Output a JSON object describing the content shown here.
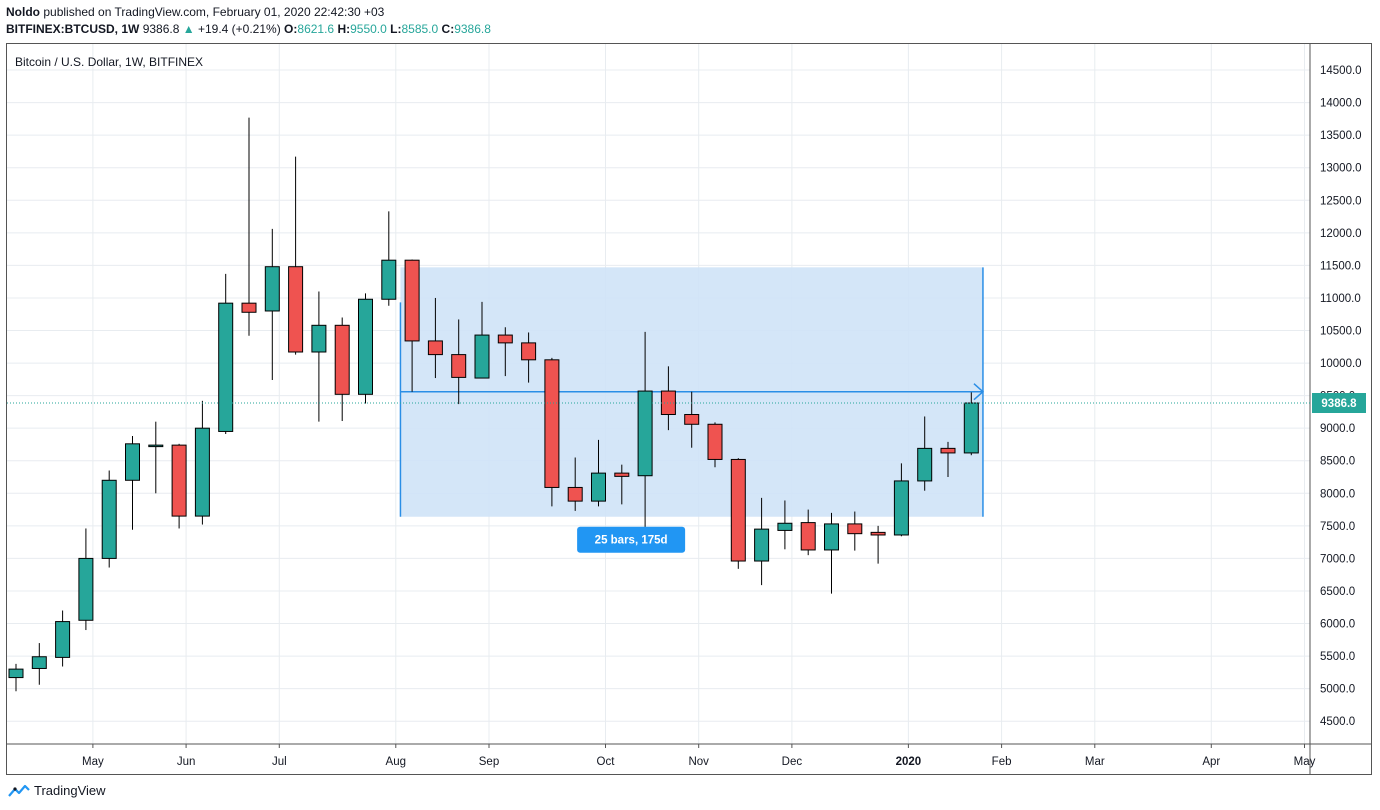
{
  "header": {
    "author": "Noldo",
    "published_text": "published on TradingView.com, February 01, 2020 22:42:30 +03",
    "symbol": "BITFINEX:BTCUSD, 1W",
    "last": "9386.8",
    "change_arrow": "▲",
    "change": "+19.4 (+0.21%)",
    "o_label": "O:",
    "o_value": "8621.6",
    "h_label": "H:",
    "h_value": "9550.0",
    "l_label": "L:",
    "l_value": "8585.0",
    "c_label": "C:",
    "c_value": "9386.8"
  },
  "footer": {
    "brand": "TradingView",
    "icon": "tradingview-logo-icon"
  },
  "colors": {
    "up": "#26a69a",
    "down": "#ef5350",
    "range_fill": "#cfe3f7",
    "range_line": "#2a8ee6",
    "badge": "#2196f3",
    "grid": "#e8ecf0"
  },
  "chart_data": {
    "type": "candlestick",
    "title": "Bitcoin / U.S. Dollar, 1W, BITFINEX",
    "y_ticks": [
      "4500.0",
      "5000.0",
      "5500.0",
      "6000.0",
      "6500.0",
      "7000.0",
      "7500.0",
      "8000.0",
      "8500.0",
      "9000.0",
      "9500.0",
      "10000.0",
      "10500.0",
      "11000.0",
      "11500.0",
      "12000.0",
      "12500.0",
      "13000.0",
      "13500.0",
      "14000.0",
      "14500.0"
    ],
    "ylim": [
      4150,
      14900
    ],
    "x_labels": [
      {
        "label": "May",
        "bar": 3.3
      },
      {
        "label": "Jun",
        "bar": 7.3
      },
      {
        "label": "Jul",
        "bar": 11.3
      },
      {
        "label": "Aug",
        "bar": 16.3
      },
      {
        "label": "Sep",
        "bar": 20.3
      },
      {
        "label": "Oct",
        "bar": 25.3
      },
      {
        "label": "Nov",
        "bar": 29.3
      },
      {
        "label": "Dec",
        "bar": 33.3
      },
      {
        "label": "2020",
        "bar": 38.3,
        "bold": true
      },
      {
        "label": "Feb",
        "bar": 42.3
      },
      {
        "label": "Mar",
        "bar": 46.3
      },
      {
        "label": "Apr",
        "bar": 51.3
      },
      {
        "label": "May",
        "bar": 55.3
      }
    ],
    "candles": [
      {
        "o": 5170,
        "h": 5380,
        "l": 4960,
        "c": 5300
      },
      {
        "o": 5310,
        "h": 5700,
        "l": 5060,
        "c": 5490
      },
      {
        "o": 5480,
        "h": 6200,
        "l": 5340,
        "c": 6030
      },
      {
        "o": 6050,
        "h": 7460,
        "l": 5900,
        "c": 7000
      },
      {
        "o": 7000,
        "h": 8350,
        "l": 6860,
        "c": 8200
      },
      {
        "o": 8200,
        "h": 8880,
        "l": 7440,
        "c": 8760
      },
      {
        "o": 8740,
        "h": 9100,
        "l": 8000,
        "c": 8740
      },
      {
        "o": 8740,
        "h": 8760,
        "l": 7460,
        "c": 7650
      },
      {
        "o": 7650,
        "h": 9420,
        "l": 7520,
        "c": 9000
      },
      {
        "o": 8950,
        "h": 11370,
        "l": 8910,
        "c": 10920
      },
      {
        "o": 10920,
        "h": 13770,
        "l": 10420,
        "c": 10780
      },
      {
        "o": 10800,
        "h": 12060,
        "l": 9740,
        "c": 11480
      },
      {
        "o": 11480,
        "h": 13170,
        "l": 10130,
        "c": 10170
      },
      {
        "o": 10170,
        "h": 11100,
        "l": 9100,
        "c": 10580
      },
      {
        "o": 10580,
        "h": 10700,
        "l": 9110,
        "c": 9520
      },
      {
        "o": 9520,
        "h": 11070,
        "l": 9380,
        "c": 10980
      },
      {
        "o": 10980,
        "h": 12330,
        "l": 10880,
        "c": 11580
      },
      {
        "o": 11580,
        "h": 11590,
        "l": 9560,
        "c": 10340
      },
      {
        "o": 10340,
        "h": 11000,
        "l": 9770,
        "c": 10130
      },
      {
        "o": 10130,
        "h": 10670,
        "l": 9370,
        "c": 9780
      },
      {
        "o": 9770,
        "h": 10940,
        "l": 9770,
        "c": 10430
      },
      {
        "o": 10430,
        "h": 10550,
        "l": 9800,
        "c": 10310
      },
      {
        "o": 10310,
        "h": 10470,
        "l": 9700,
        "c": 10050
      },
      {
        "o": 10050,
        "h": 10080,
        "l": 7800,
        "c": 8090
      },
      {
        "o": 8090,
        "h": 8550,
        "l": 7730,
        "c": 7880
      },
      {
        "o": 7880,
        "h": 8820,
        "l": 7800,
        "c": 8310
      },
      {
        "o": 8310,
        "h": 8440,
        "l": 7830,
        "c": 8260
      },
      {
        "o": 8270,
        "h": 10480,
        "l": 7450,
        "c": 9570
      },
      {
        "o": 9570,
        "h": 9950,
        "l": 8970,
        "c": 9210
      },
      {
        "o": 9210,
        "h": 9560,
        "l": 8700,
        "c": 9060
      },
      {
        "o": 9060,
        "h": 9090,
        "l": 8400,
        "c": 8520
      },
      {
        "o": 8520,
        "h": 8540,
        "l": 6840,
        "c": 6960
      },
      {
        "o": 6960,
        "h": 7930,
        "l": 6590,
        "c": 7450
      },
      {
        "o": 7430,
        "h": 7890,
        "l": 7140,
        "c": 7540
      },
      {
        "o": 7550,
        "h": 7750,
        "l": 7050,
        "c": 7130
      },
      {
        "o": 7130,
        "h": 7700,
        "l": 6460,
        "c": 7530
      },
      {
        "o": 7530,
        "h": 7720,
        "l": 7120,
        "c": 7380
      },
      {
        "o": 7400,
        "h": 7500,
        "l": 6920,
        "c": 7360
      },
      {
        "o": 7360,
        "h": 8460,
        "l": 7340,
        "c": 8190
      },
      {
        "o": 8190,
        "h": 9180,
        "l": 8040,
        "c": 8690
      },
      {
        "o": 8690,
        "h": 8790,
        "l": 8250,
        "c": 8620
      },
      {
        "o": 8620,
        "h": 9550,
        "l": 8585,
        "c": 9386.8
      }
    ],
    "last_price": 9386.8,
    "last_price_label": "9386.8",
    "range": {
      "start_bar": 16.5,
      "end_bar": 41.5,
      "top": 11470,
      "bottom": 7640,
      "mid": 9560,
      "label": "25 bars, 175d"
    }
  }
}
